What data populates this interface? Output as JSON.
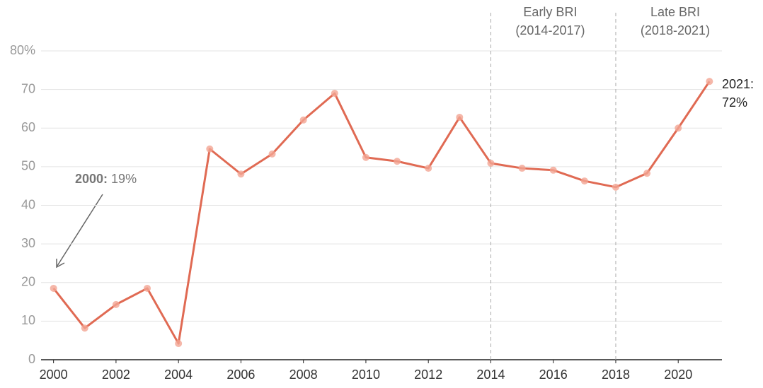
{
  "chart_data": {
    "type": "line",
    "x": [
      2000,
      2001,
      2002,
      2003,
      2004,
      2005,
      2006,
      2007,
      2008,
      2009,
      2010,
      2011,
      2012,
      2013,
      2014,
      2015,
      2016,
      2017,
      2018,
      2019,
      2020,
      2021
    ],
    "series": [
      {
        "color": "#e06a53",
        "marker_color": "#f2a593",
        "values": [
          18.5,
          8.2,
          14.3,
          18.5,
          4.2,
          54.6,
          48.1,
          53.3,
          62.1,
          69.0,
          52.4,
          51.4,
          49.6,
          62.8,
          50.9,
          49.6,
          49.1,
          46.3,
          44.7,
          48.3,
          60.0,
          72.1
        ]
      }
    ],
    "xlim": [
      1999.6,
      2021.4
    ],
    "xticks": [
      2000,
      2002,
      2004,
      2006,
      2008,
      2010,
      2012,
      2014,
      2016,
      2018,
      2020
    ],
    "ylim": [
      0,
      80
    ],
    "yticks": [
      0,
      10,
      20,
      30,
      40,
      50,
      60,
      70,
      {
        "value": 80,
        "label": "80%"
      }
    ],
    "grid": true,
    "periods": [
      {
        "x": 2014,
        "label": [
          "Early BRI",
          "(2014-2017)"
        ]
      },
      {
        "x": 2018,
        "label": [
          "Late BRI",
          "(2018-2021)"
        ]
      }
    ],
    "annotations": [
      {
        "label": "2000:",
        "text": "19%"
      },
      {
        "label": "2021:",
        "text": "72%"
      }
    ]
  }
}
